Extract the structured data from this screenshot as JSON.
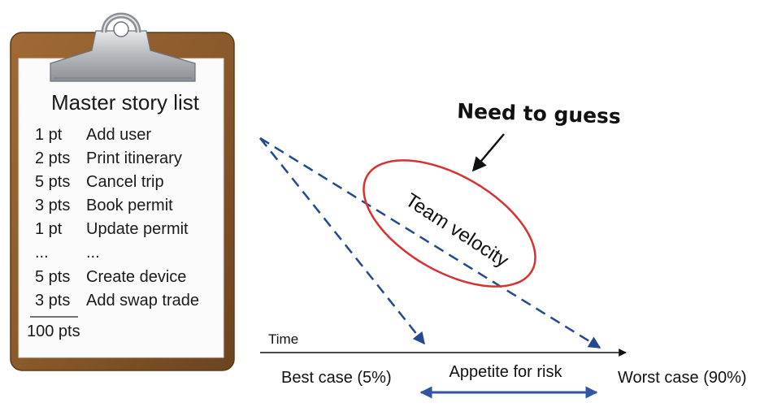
{
  "clipboard": {
    "title": "Master story list",
    "stories": [
      {
        "points": "1 pt",
        "name": "Add user"
      },
      {
        "points": "2 pts",
        "name": "Print itinerary"
      },
      {
        "points": "5 pts",
        "name": "Cancel trip"
      },
      {
        "points": "3 pts",
        "name": "Book permit"
      },
      {
        "points": "1 pt",
        "name": "Update permit"
      },
      {
        "points": "...",
        "name": "..."
      },
      {
        "points": "5 pts",
        "name": "Create device"
      },
      {
        "points": "3 pts",
        "name": "Add swap trade"
      }
    ],
    "total": "100 pts"
  },
  "diagram": {
    "callout": "Need to guess",
    "ellipse_label": "Team velocity",
    "axis_label": "Time",
    "best_case": "Best case (5%)",
    "worst_case": "Worst case (90%)",
    "risk_label": "Appetite for risk"
  },
  "colors": {
    "board": "#8a5a2b",
    "board_edge": "#5e3a17",
    "paper": "#fbfbfb",
    "clip_metal": "#b4b7bb",
    "dash_blue": "#234a91",
    "ellipse_red": "#d9312e",
    "arrow_blue": "#2f55a4"
  }
}
